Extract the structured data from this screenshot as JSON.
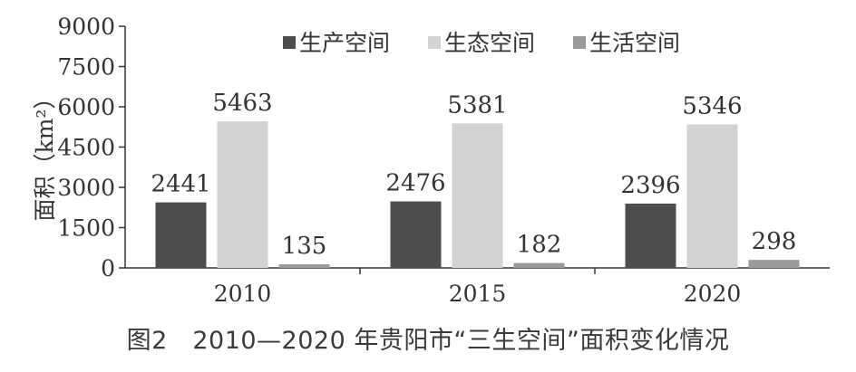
{
  "chart_data": {
    "type": "bar",
    "categories": [
      "2010",
      "2015",
      "2020"
    ],
    "series": [
      {
        "name": "生产空间",
        "values": [
          2441,
          2476,
          2396
        ],
        "color": "#4d4d4d"
      },
      {
        "name": "生态空间",
        "values": [
          5463,
          5381,
          5346
        ],
        "color": "#d3d3d3"
      },
      {
        "name": "生活空间",
        "values": [
          135,
          182,
          298
        ],
        "color": "#9a9a9a"
      }
    ],
    "ylabel": "面积（km²）",
    "ylim": [
      0,
      9000
    ],
    "yticks": [
      "0",
      "1500",
      "3000",
      "4500",
      "6000",
      "7500",
      "9000"
    ],
    "grid": false,
    "legend_position": "top"
  },
  "caption": "图2　2010—2020 年贵阳市“三生空间”面积变化情况"
}
